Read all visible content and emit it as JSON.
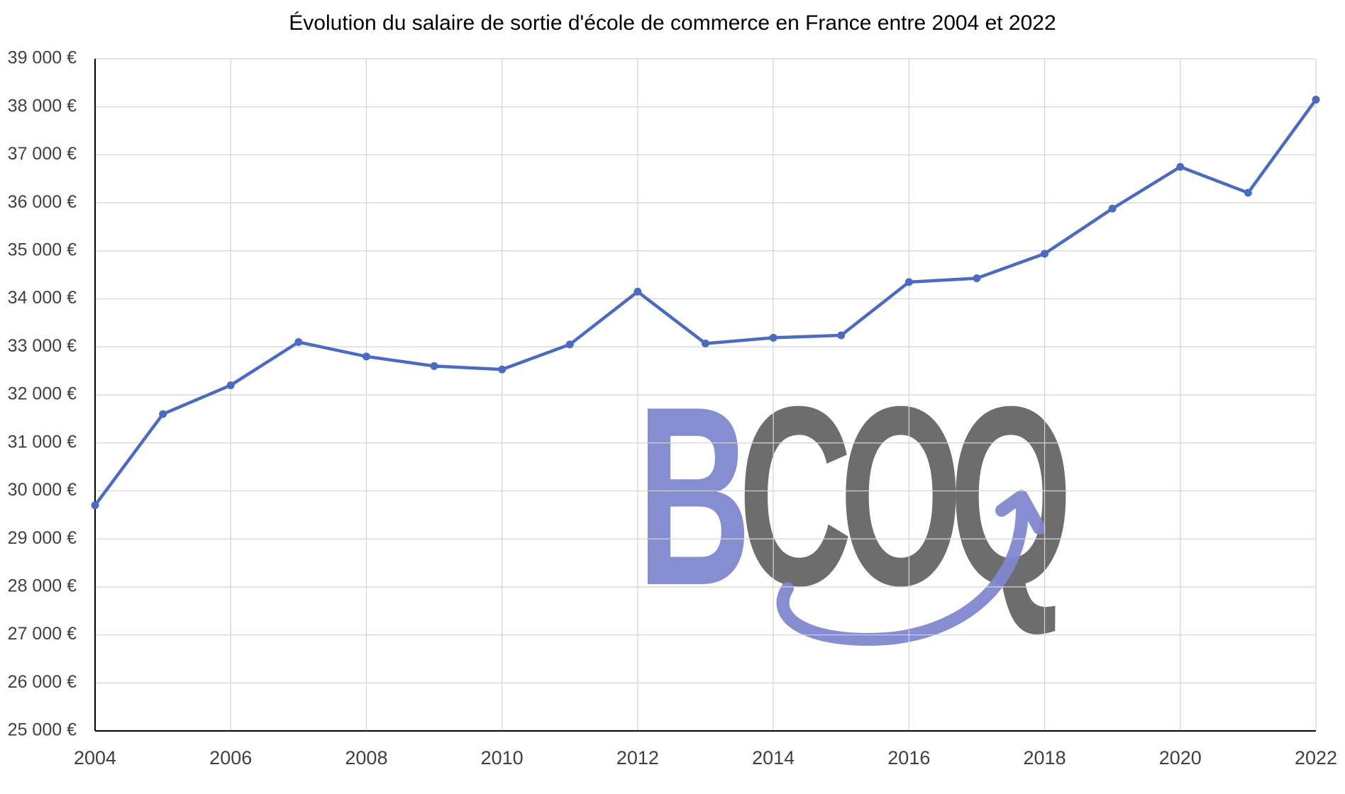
{
  "chart_data": {
    "type": "line",
    "title": "Évolution du salaire de sortie d'école de commerce en France entre 2004 et 2022",
    "x": [
      2004,
      2005,
      2006,
      2007,
      2008,
      2009,
      2010,
      2011,
      2012,
      2013,
      2014,
      2015,
      2016,
      2017,
      2018,
      2019,
      2020,
      2021,
      2022
    ],
    "series": [
      {
        "name": "Salaire de sortie",
        "color": "#4a6bbf",
        "values": [
          29700,
          31600,
          32200,
          33100,
          32800,
          32600,
          32530,
          33050,
          34150,
          33070,
          33190,
          33240,
          34350,
          34430,
          34940,
          35880,
          36750,
          36210,
          38150
        ]
      }
    ],
    "xlim": [
      2004,
      2022
    ],
    "xticks": [
      2004,
      2006,
      2008,
      2010,
      2012,
      2014,
      2016,
      2018,
      2020,
      2022
    ],
    "ylim": [
      25000,
      39000
    ],
    "yticks": [
      {
        "value": 25000,
        "label": "25 000 €"
      },
      {
        "value": 26000,
        "label": "26 000 €"
      },
      {
        "value": 27000,
        "label": "27 000 €"
      },
      {
        "value": 28000,
        "label": "28 000 €"
      },
      {
        "value": 29000,
        "label": "29 000 €"
      },
      {
        "value": 30000,
        "label": "30 000 €"
      },
      {
        "value": 31000,
        "label": "31 000 €"
      },
      {
        "value": 32000,
        "label": "32 000 €"
      },
      {
        "value": 33000,
        "label": "33 000 €"
      },
      {
        "value": 34000,
        "label": "34 000 €"
      },
      {
        "value": 35000,
        "label": "35 000 €"
      },
      {
        "value": 36000,
        "label": "36 000 €"
      },
      {
        "value": 37000,
        "label": "37 000 €"
      },
      {
        "value": 38000,
        "label": "38 000 €"
      },
      {
        "value": 39000,
        "label": "39 000 €"
      }
    ],
    "grid": true
  },
  "watermark": "BCOQ"
}
